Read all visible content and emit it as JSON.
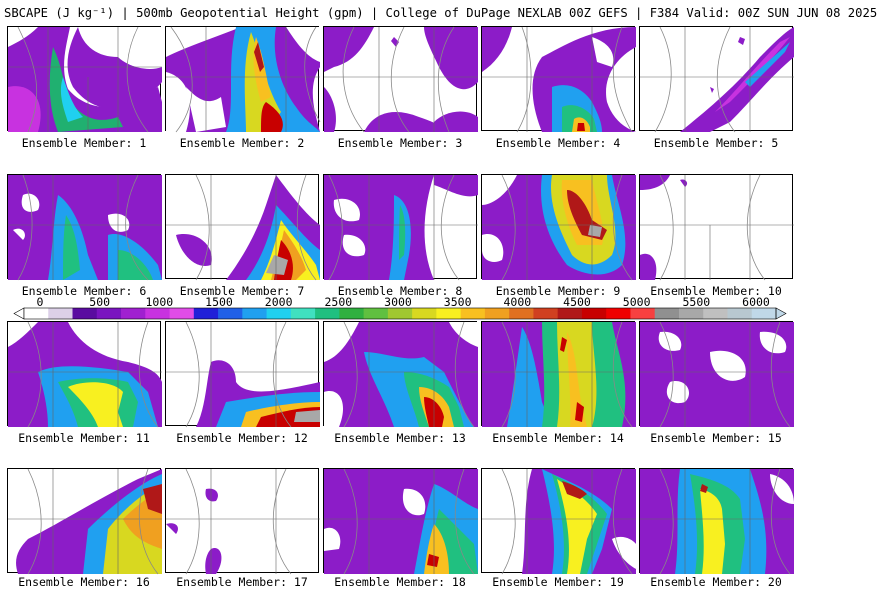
{
  "header": {
    "title": "SBCAPE (J kg⁻¹) | 500mb Geopotential Height (gpm) | College of DuPage NEXLAB 00Z GEFS | F384 Valid: 00Z SUN JUN 08 2025"
  },
  "colorbar": {
    "ticks": [
      "0",
      "500",
      "1000",
      "1500",
      "2000",
      "2500",
      "3000",
      "3500",
      "4000",
      "4500",
      "5000",
      "5500",
      "6000"
    ],
    "colors": [
      "#ffffff",
      "#dcd0e8",
      "#5a0ca0",
      "#7a14c0",
      "#a020d0",
      "#c832e0",
      "#e04ce8",
      "#2020d8",
      "#2060e8",
      "#20a0f0",
      "#20d0f0",
      "#40e0c0",
      "#20c080",
      "#30b040",
      "#60c040",
      "#a0c830",
      "#d8d820",
      "#f8f020",
      "#f8c020",
      "#f0a020",
      "#e07020",
      "#d04020",
      "#b01818",
      "#c80000",
      "#f00000",
      "#f84040",
      "#909090",
      "#a8a8a8",
      "#c0c0c0",
      "#b8c8d0",
      "#c0d8e8"
    ]
  },
  "members": [
    {
      "label": "Ensemble Member: 1"
    },
    {
      "label": "Ensemble Member: 2"
    },
    {
      "label": "Ensemble Member: 3"
    },
    {
      "label": "Ensemble Member: 4"
    },
    {
      "label": "Ensemble Member: 5"
    },
    {
      "label": "Ensemble Member: 6"
    },
    {
      "label": "Ensemble Member: 7"
    },
    {
      "label": "Ensemble Member: 8"
    },
    {
      "label": "Ensemble Member: 9"
    },
    {
      "label": "Ensemble Member: 10"
    },
    {
      "label": "Ensemble Member: 11"
    },
    {
      "label": "Ensemble Member: 12"
    },
    {
      "label": "Ensemble Member: 13"
    },
    {
      "label": "Ensemble Member: 14"
    },
    {
      "label": "Ensemble Member: 15"
    },
    {
      "label": "Ensemble Member: 16"
    },
    {
      "label": "Ensemble Member: 17"
    },
    {
      "label": "Ensemble Member: 18"
    },
    {
      "label": "Ensemble Member: 19"
    },
    {
      "label": "Ensemble Member: 20"
    }
  ]
}
